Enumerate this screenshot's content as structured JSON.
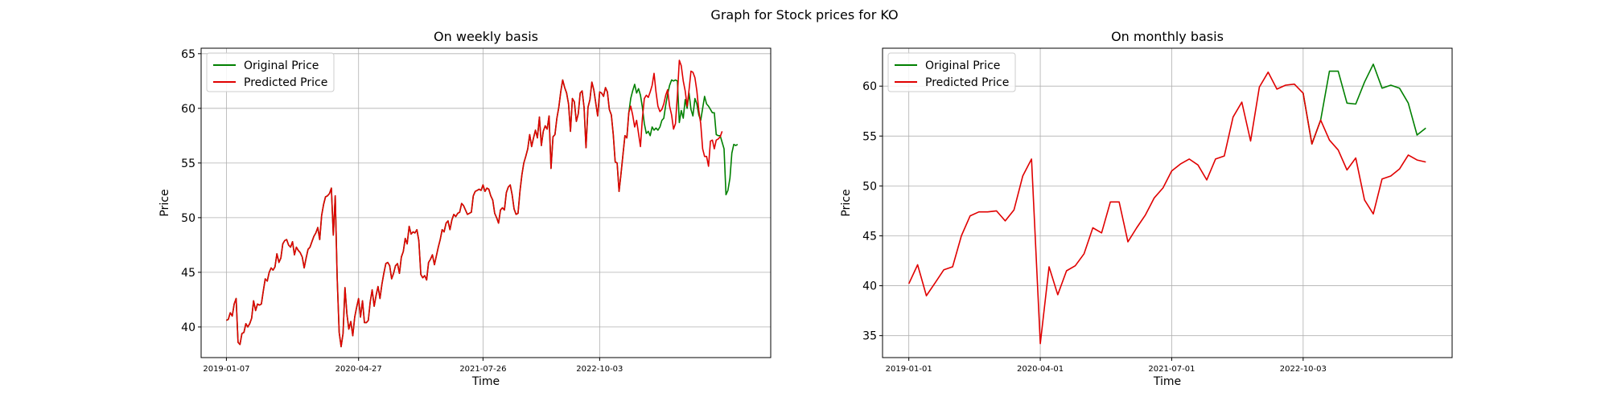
{
  "figure": {
    "suptitle": "Graph for Stock prices for KO"
  },
  "chart_data": [
    {
      "type": "line",
      "title": "On weekly basis",
      "xlabel": "Time",
      "ylabel": "Price",
      "x_tick_labels": [
        "2019-01-07",
        "2020-04-27",
        "2021-07-26",
        "2022-10-03"
      ],
      "x_tick_positions": [
        0,
        68,
        132,
        192
      ],
      "xlim": [
        -13,
        280
      ],
      "ylim": [
        37.2,
        65.5
      ],
      "y_ticks": [
        40,
        45,
        50,
        55,
        60,
        65
      ],
      "grid": true,
      "legend_position": "top-left",
      "series": [
        {
          "name": "Original Price",
          "color": "#008000",
          "x_start": 0,
          "values": [
            40.6,
            40.7,
            41.3,
            41.0,
            42.1,
            42.6,
            38.6,
            38.4,
            39.4,
            39.5,
            40.3,
            40.0,
            40.3,
            40.8,
            42.4,
            41.5,
            42.1,
            42.0,
            42.1,
            43.3,
            44.4,
            44.2,
            45.0,
            45.4,
            45.2,
            45.5,
            46.7,
            45.9,
            46.3,
            47.6,
            47.9,
            48.0,
            47.5,
            47.3,
            47.8,
            46.6,
            47.3,
            47.0,
            46.8,
            46.4,
            45.4,
            46.3,
            47.1,
            47.3,
            47.8,
            48.3,
            48.6,
            49.1,
            48.0,
            50.2,
            51.2,
            51.9,
            52.0,
            52.2,
            52.7,
            48.4,
            52.0,
            44.5,
            39.5,
            38.2,
            39.4,
            43.6,
            41.2,
            39.8,
            40.5,
            39.2,
            40.9,
            41.8,
            42.6,
            40.9,
            42.4,
            40.4,
            40.4,
            40.6,
            42.3,
            43.4,
            41.9,
            42.9,
            43.7,
            42.6,
            43.9,
            44.9,
            45.8,
            45.9,
            45.6,
            44.4,
            44.9,
            45.6,
            45.8,
            44.9,
            46.4,
            46.9,
            48.1,
            47.6,
            49.2,
            48.5,
            48.7,
            48.6,
            48.9,
            47.9,
            44.8,
            44.5,
            44.7,
            44.3,
            45.9,
            46.2,
            46.6,
            45.7,
            46.5,
            47.3,
            48.0,
            48.9,
            48.7,
            49.5,
            49.7,
            48.9,
            49.8,
            50.3,
            50.1,
            50.4,
            50.5,
            51.3,
            51.1,
            50.7,
            50.3,
            50.4,
            50.5,
            52.0,
            52.4,
            52.5,
            52.6,
            52.5,
            53.0,
            52.4,
            52.7,
            52.6,
            52.0,
            51.6,
            50.4,
            50.0,
            49.5,
            50.7,
            50.9,
            50.7,
            52.3,
            52.8,
            53.0,
            52.1,
            50.8,
            50.3,
            50.4,
            52.4,
            53.9,
            55.0,
            55.6,
            56.3,
            57.6,
            56.5,
            57.3,
            58.0,
            57.3,
            59.2,
            56.6,
            57.9,
            58.4,
            58.1,
            59.3,
            54.5,
            57.4,
            57.6,
            59.1,
            60.1,
            61.5,
            62.6,
            61.9,
            61.4,
            60.4,
            57.9,
            60.9,
            60.6,
            58.8,
            59.5,
            61.4,
            61.6,
            60.1,
            56.4,
            60.1,
            60.8,
            62.4,
            61.7,
            60.5,
            59.3,
            61.5,
            61.4,
            61.1,
            61.9,
            61.5,
            59.9,
            59.4,
            57.6,
            55.1,
            55.0,
            52.4,
            54.0,
            55.8,
            57.5,
            57.3,
            59.6,
            60.9,
            61.6,
            62.2,
            61.4,
            61.8,
            61.2,
            60.1,
            58.6,
            57.7,
            57.9,
            57.5,
            58.3,
            58.0,
            58.2,
            58.0,
            58.3,
            58.9,
            59.1,
            60.3,
            61.3,
            62.1,
            62.6,
            62.5,
            62.6,
            62.5,
            58.7,
            59.8,
            59.1,
            60.8,
            60.0,
            61.4,
            59.9,
            59.3,
            60.9,
            60.4,
            59.4,
            58.9,
            60.0,
            61.1,
            60.4,
            60.2,
            59.9,
            59.6,
            59.6,
            57.6,
            57.5,
            57.5,
            56.9,
            56.3,
            52.1,
            52.5,
            53.6,
            55.9,
            56.7,
            56.6,
            56.7
          ]
        },
        {
          "name": "Predicted Price",
          "color": "#e00000",
          "x_start": 0,
          "values": [
            40.6,
            40.7,
            41.3,
            41.0,
            42.1,
            42.6,
            38.6,
            38.4,
            39.4,
            39.5,
            40.3,
            40.0,
            40.3,
            40.8,
            42.4,
            41.5,
            42.1,
            42.0,
            42.1,
            43.3,
            44.4,
            44.2,
            45.0,
            45.4,
            45.2,
            45.5,
            46.7,
            45.9,
            46.3,
            47.6,
            47.9,
            48.0,
            47.5,
            47.3,
            47.8,
            46.6,
            47.3,
            47.0,
            46.8,
            46.4,
            45.4,
            46.3,
            47.1,
            47.3,
            47.8,
            48.3,
            48.6,
            49.1,
            48.0,
            50.2,
            51.2,
            51.9,
            52.0,
            52.2,
            52.7,
            48.4,
            52.0,
            44.5,
            39.5,
            38.2,
            39.4,
            43.6,
            41.2,
            39.8,
            40.5,
            39.2,
            40.9,
            41.8,
            42.6,
            40.9,
            42.4,
            40.4,
            40.4,
            40.6,
            42.3,
            43.4,
            41.9,
            42.9,
            43.7,
            42.6,
            43.9,
            44.9,
            45.8,
            45.9,
            45.6,
            44.4,
            44.9,
            45.6,
            45.8,
            44.9,
            46.4,
            46.9,
            48.1,
            47.6,
            49.2,
            48.5,
            48.7,
            48.6,
            48.9,
            47.9,
            44.8,
            44.5,
            44.7,
            44.3,
            45.9,
            46.2,
            46.6,
            45.7,
            46.5,
            47.3,
            48.0,
            48.9,
            48.7,
            49.5,
            49.7,
            48.9,
            49.8,
            50.3,
            50.1,
            50.4,
            50.5,
            51.3,
            51.1,
            50.7,
            50.3,
            50.4,
            50.5,
            52.0,
            52.4,
            52.5,
            52.6,
            52.5,
            53.0,
            52.4,
            52.7,
            52.6,
            52.0,
            51.6,
            50.4,
            50.0,
            49.5,
            50.7,
            50.9,
            50.7,
            52.3,
            52.8,
            53.0,
            52.1,
            50.8,
            50.3,
            50.4,
            52.4,
            53.9,
            55.0,
            55.6,
            56.3,
            57.6,
            56.5,
            57.3,
            58.0,
            57.3,
            59.2,
            56.6,
            57.9,
            58.4,
            58.1,
            59.3,
            54.5,
            57.4,
            57.6,
            59.1,
            60.1,
            61.5,
            62.6,
            61.9,
            61.4,
            60.4,
            57.9,
            60.9,
            60.6,
            58.8,
            59.5,
            61.4,
            61.6,
            60.1,
            56.4,
            60.1,
            60.8,
            62.4,
            61.7,
            60.5,
            59.3,
            61.5,
            61.4,
            61.1,
            61.9,
            61.5,
            59.9,
            59.4,
            57.6,
            55.1,
            55.0,
            52.4,
            54.0,
            55.8,
            57.5,
            57.3,
            59.6,
            60.2,
            59.4,
            58.3,
            58.9,
            57.7,
            56.5,
            59.1,
            60.9,
            61.2,
            61.0,
            61.5,
            62.1,
            63.2,
            61.5,
            60.2,
            59.7,
            59.9,
            60.4,
            61.2,
            61.7,
            60.2,
            59.4,
            58.1,
            58.6,
            61.2,
            64.4,
            63.9,
            62.5,
            61.6,
            60.2,
            61.7,
            63.4,
            63.3,
            62.8,
            61.6,
            59.8,
            58.6,
            56.3,
            55.6,
            55.6,
            54.7,
            57.0,
            57.1,
            56.3,
            57.1,
            57.2,
            57.4,
            57.9
          ]
        }
      ]
    },
    {
      "type": "line",
      "title": "On monthly basis",
      "xlabel": "Time",
      "ylabel": "Price",
      "x_tick_labels": [
        "2019-01-01",
        "2020-04-01",
        "2021-07-01",
        "2022-10-03"
      ],
      "x_tick_positions": [
        0,
        15,
        30,
        45
      ],
      "xlim": [
        -3,
        62
      ],
      "ylim": [
        32.8,
        63.8
      ],
      "y_ticks": [
        35,
        40,
        45,
        50,
        55,
        60
      ],
      "grid": true,
      "legend_position": "top-left",
      "series": [
        {
          "name": "Original Price",
          "color": "#008000",
          "x_start": 45,
          "values": [
            59.3,
            54.2,
            56.6,
            61.5,
            61.5,
            58.3,
            58.2,
            60.4,
            62.2,
            59.8,
            60.1,
            59.8,
            58.3,
            55.1,
            55.8
          ]
        },
        {
          "name": "Predicted Price",
          "color": "#e00000",
          "x_start": 0,
          "values": [
            40.2,
            42.1,
            39.0,
            40.3,
            41.6,
            41.9,
            45.0,
            47.0,
            47.4,
            47.4,
            47.5,
            46.5,
            47.6,
            51.0,
            52.7,
            34.2,
            41.9,
            39.1,
            41.5,
            42.0,
            43.2,
            45.8,
            45.3,
            48.4,
            48.4,
            44.4,
            45.8,
            47.1,
            48.8,
            49.8,
            51.5,
            52.2,
            52.7,
            52.1,
            50.6,
            52.7,
            53.0,
            56.9,
            58.4,
            54.5,
            59.9,
            61.4,
            59.7,
            60.1,
            60.2,
            59.3,
            54.2,
            56.6,
            54.6,
            53.6,
            51.6,
            52.8,
            48.6,
            47.2,
            50.7,
            51.0,
            51.7,
            53.1,
            52.6,
            52.4
          ]
        }
      ]
    }
  ]
}
